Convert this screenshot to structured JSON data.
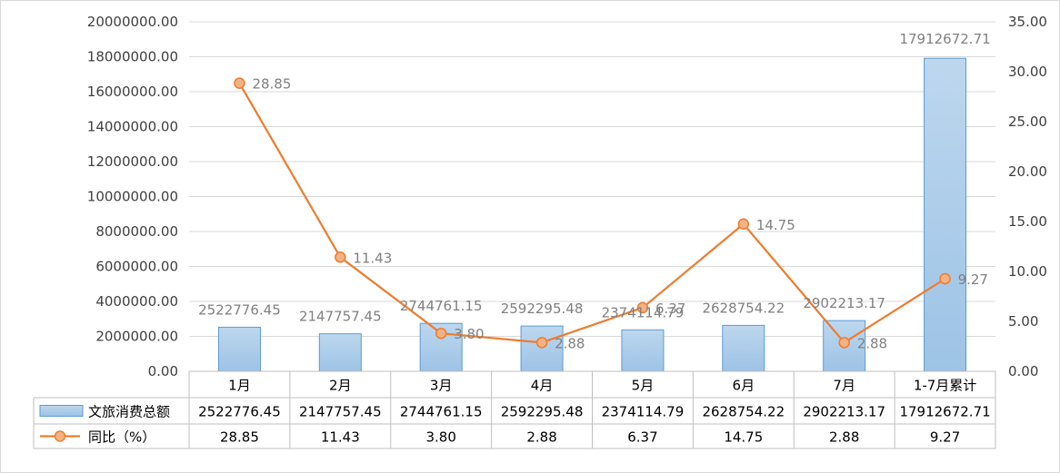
{
  "chart_data": {
    "type": "bar",
    "categories": [
      "1月",
      "2月",
      "3月",
      "4月",
      "5月",
      "6月",
      "7月",
      "1-7月累计"
    ],
    "series": [
      {
        "name": "文旅消费总额",
        "kind": "bar",
        "axis": "left",
        "values": [
          2522776.45,
          2147757.45,
          2744761.15,
          2592295.48,
          2374114.79,
          2628754.22,
          2902213.17,
          17912672.71
        ],
        "labels": [
          "2522776.45",
          "2147757.45",
          "2744761.15",
          "2592295.48",
          "2374114.79",
          "2628754.22",
          "2902213.17",
          "17912672.71"
        ],
        "color": "#9dc3e6"
      },
      {
        "name": "同比（%）",
        "kind": "line",
        "axis": "right",
        "values": [
          28.85,
          11.43,
          3.8,
          2.88,
          6.37,
          14.75,
          2.88,
          9.27
        ],
        "labels": [
          "28.85",
          "11.43",
          "3.80",
          "2.88",
          "6.37",
          "14.75",
          "2.88",
          "9.27"
        ],
        "color": "#ed7d31"
      }
    ],
    "ylim_left": [
      0,
      20000000
    ],
    "ylim_right": [
      0,
      35
    ],
    "yticks_left": [
      "0.00",
      "2000000.00",
      "4000000.00",
      "6000000.00",
      "8000000.00",
      "10000000.00",
      "12000000.00",
      "14000000.00",
      "16000000.00",
      "18000000.00",
      "20000000.00"
    ],
    "yticks_right": [
      "0.00",
      "5.00",
      "10.00",
      "15.00",
      "20.00",
      "25.00",
      "30.00",
      "35.00"
    ],
    "grid": true,
    "data_table": true
  }
}
